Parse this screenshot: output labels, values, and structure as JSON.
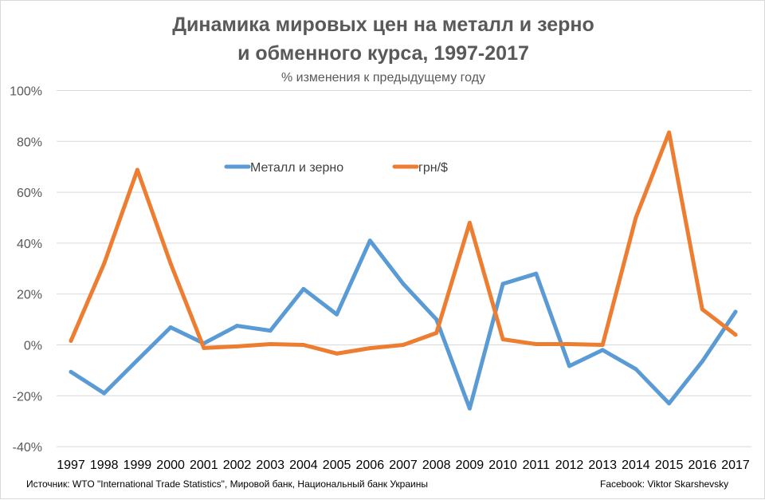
{
  "chart_data": {
    "type": "line",
    "title_line1": "Динамика мировых цен на металл и зерно",
    "title_line2": "и обменного курса, 1997-2017",
    "subtitle": "% изменения к предыдущему году",
    "x": [
      "1997",
      "1998",
      "1999",
      "2000",
      "2001",
      "2002",
      "2003",
      "2004",
      "2005",
      "2006",
      "2007",
      "2008",
      "2009",
      "2010",
      "2011",
      "2012",
      "2013",
      "2014",
      "2015",
      "2016",
      "2017"
    ],
    "yticks": [
      "100%",
      "80%",
      "60%",
      "40%",
      "20%",
      "0%",
      "-20%",
      "-40%"
    ],
    "ytick_values": [
      100,
      80,
      60,
      40,
      20,
      0,
      -20,
      -40
    ],
    "ylim": [
      -40,
      100
    ],
    "grid": true,
    "legend_position": "top-center",
    "series": [
      {
        "name": "Металл и зерно",
        "color": "#5b9bd5",
        "values": [
          -10.6,
          -19,
          -6,
          6.9,
          0.6,
          7.5,
          5.6,
          22,
          12,
          41,
          24,
          10,
          -25,
          24,
          28,
          -8.3,
          -2,
          -9.5,
          -23,
          -6.5,
          13
        ]
      },
      {
        "name": "грн/$",
        "color": "#ed7d31",
        "values": [
          1.6,
          32,
          68.8,
          32,
          -1.2,
          -0.6,
          0.3,
          0,
          -3.4,
          -1.3,
          0,
          4.7,
          48,
          2.2,
          0.3,
          0.3,
          0,
          50,
          83.5,
          14,
          4
        ]
      }
    ]
  },
  "footer": {
    "source": "Источник: WTO \"International Trade Statistics\", Мировой банк, Национальный банк Украины",
    "author": "Facebook: Viktor Skarshevsky"
  }
}
